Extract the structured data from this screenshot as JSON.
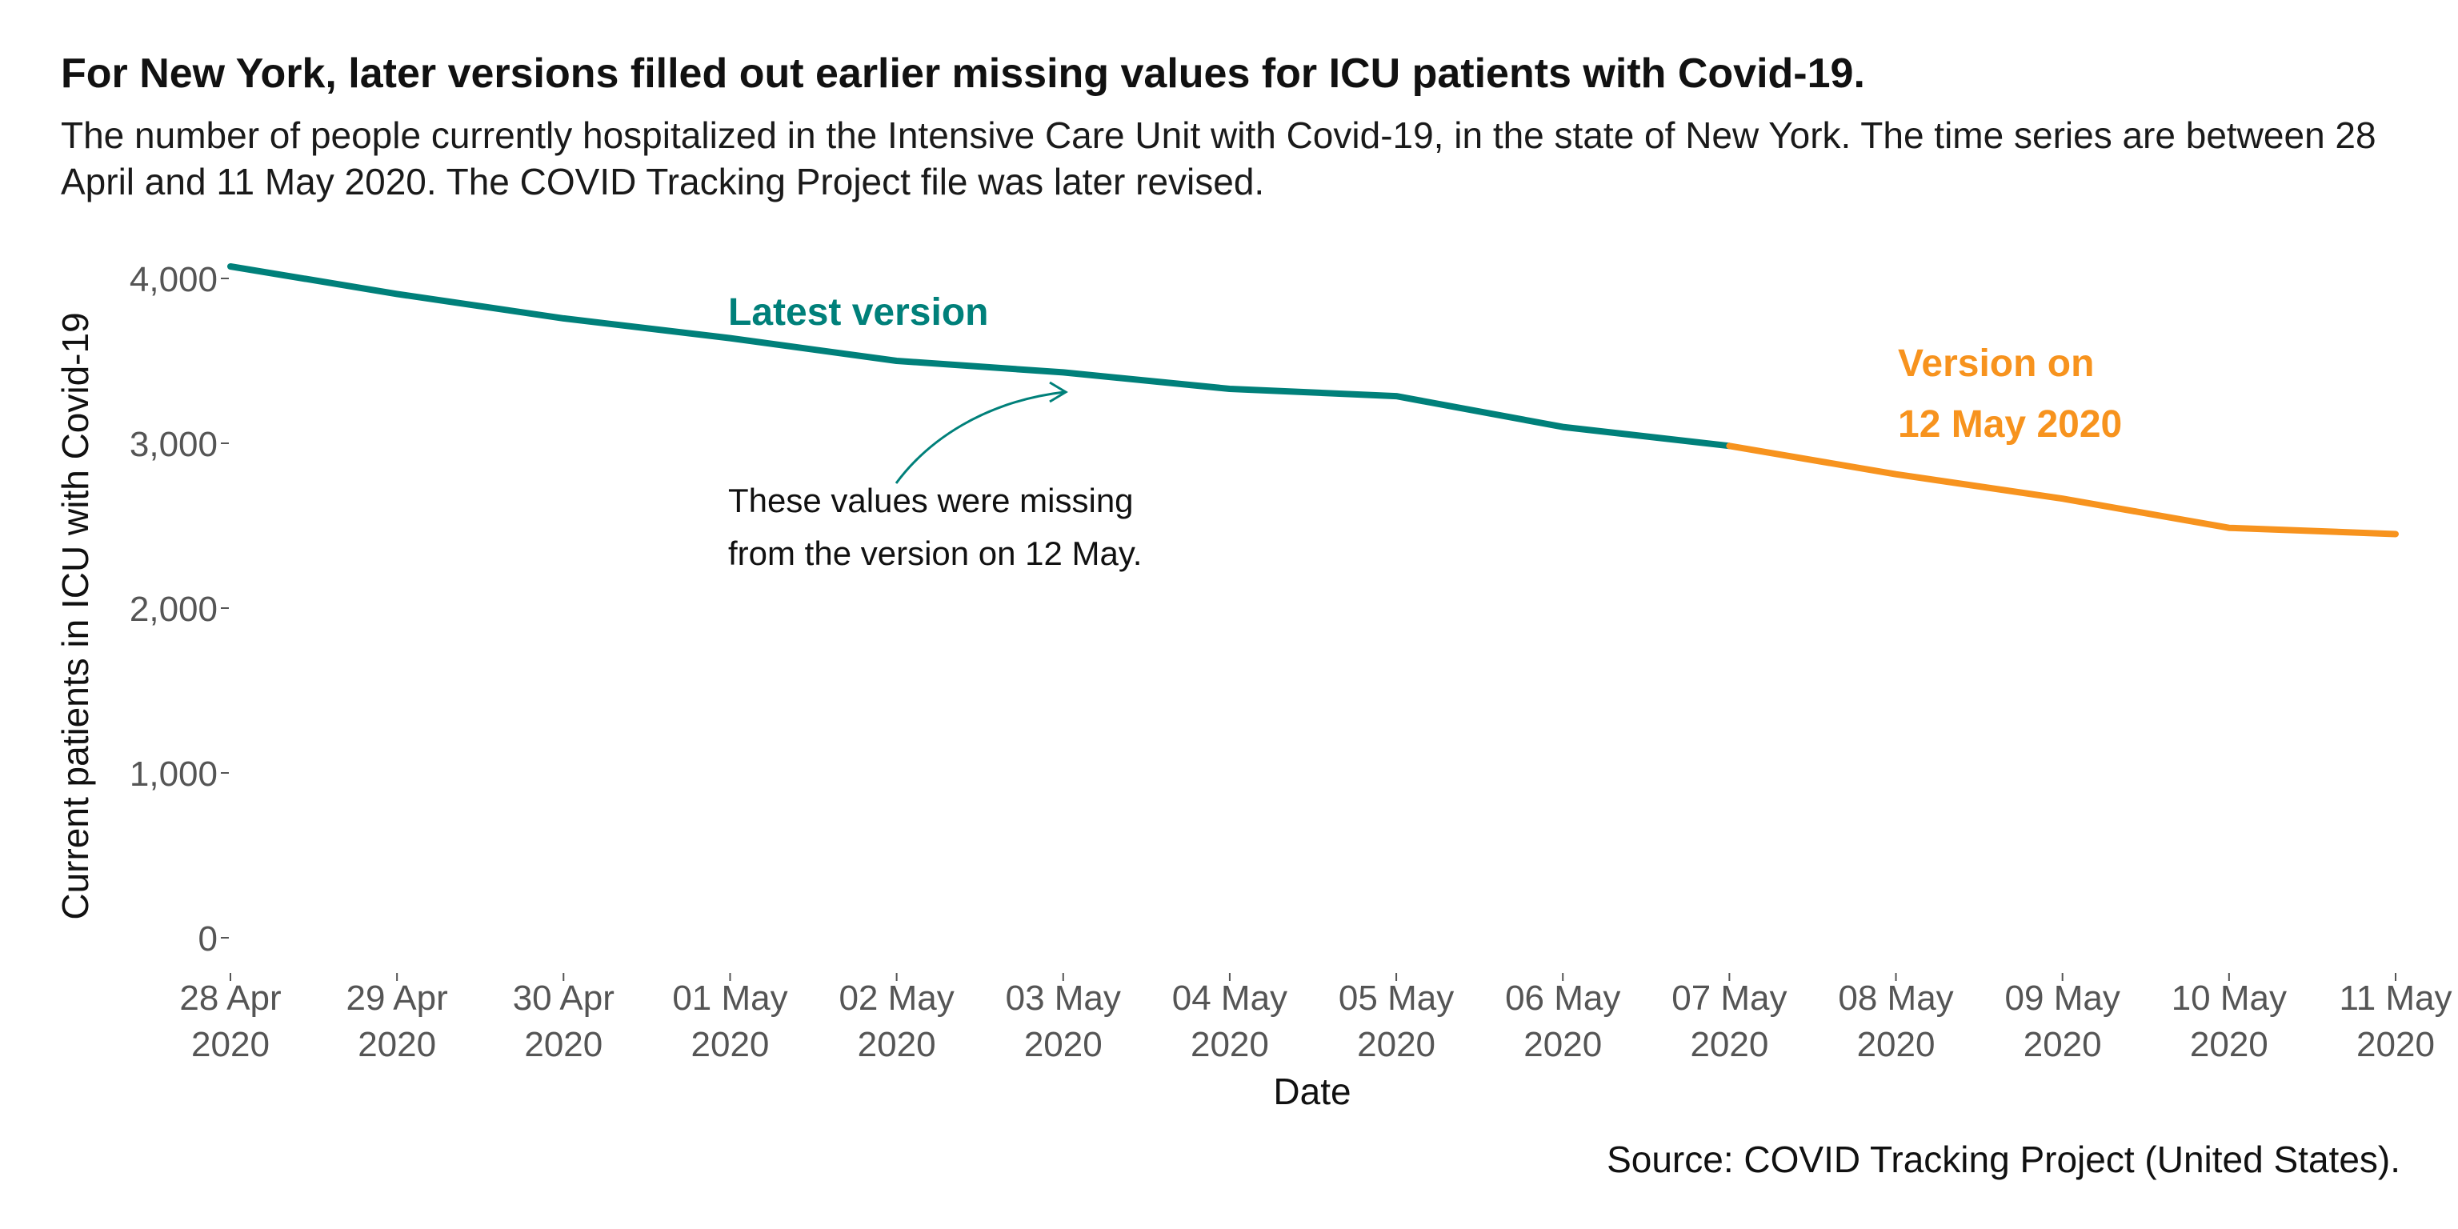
{
  "header": {
    "title": "For New York, later versions filled out earlier missing values for ICU patients with Covid-19.",
    "subtitle": "The number of people currently hospitalized in the Intensive Care Unit with Covid-19, in the state of New York. The time series are between 28 April and 11 May 2020. The COVID Tracking Project file was later revised."
  },
  "source": "Source: COVID Tracking Project (United States).",
  "annotation": {
    "line1": "These values were missing",
    "line2": "from the version on 12 May."
  },
  "colors": {
    "latest": "#00807a",
    "version_12_may": "#f7931e",
    "tick": "#555555"
  },
  "chart_data": {
    "type": "line",
    "xlabel": "Date",
    "ylabel": "Current patients in ICU with Covid-19",
    "ylim": [
      0,
      4200
    ],
    "yticks": [
      0,
      1000,
      2000,
      3000,
      4000
    ],
    "ytick_labels": [
      "0",
      "1,000",
      "2,000",
      "3,000",
      "4,000"
    ],
    "grid": false,
    "x": [
      "2020-04-28",
      "2020-04-29",
      "2020-04-30",
      "2020-05-01",
      "2020-05-02",
      "2020-05-03",
      "2020-05-04",
      "2020-05-05",
      "2020-05-06",
      "2020-05-07",
      "2020-05-08",
      "2020-05-09",
      "2020-05-10",
      "2020-05-11"
    ],
    "xtick_labels": [
      [
        "28 Apr",
        "2020"
      ],
      [
        "29 Apr",
        "2020"
      ],
      [
        "30 Apr",
        "2020"
      ],
      [
        "01 May",
        "2020"
      ],
      [
        "02 May",
        "2020"
      ],
      [
        "03 May",
        "2020"
      ],
      [
        "04 May",
        "2020"
      ],
      [
        "05 May",
        "2020"
      ],
      [
        "06 May",
        "2020"
      ],
      [
        "07 May",
        "2020"
      ],
      [
        "08 May",
        "2020"
      ],
      [
        "09 May",
        "2020"
      ],
      [
        "10 May",
        "2020"
      ],
      [
        "11 May",
        "2020"
      ]
    ],
    "series": [
      {
        "name": "Latest version",
        "color": "#00807a",
        "values": [
          4073,
          3906,
          3758,
          3638,
          3500,
          3430,
          3330,
          3286,
          3099,
          2984,
          null,
          null,
          null,
          null
        ]
      },
      {
        "name": "Version on 12 May 2020",
        "label_lines": [
          "Version on",
          "12 May 2020"
        ],
        "color": "#f7931e",
        "values": [
          null,
          null,
          null,
          null,
          null,
          null,
          null,
          null,
          null,
          2984,
          2812,
          2664,
          2487,
          2449
        ]
      }
    ]
  }
}
